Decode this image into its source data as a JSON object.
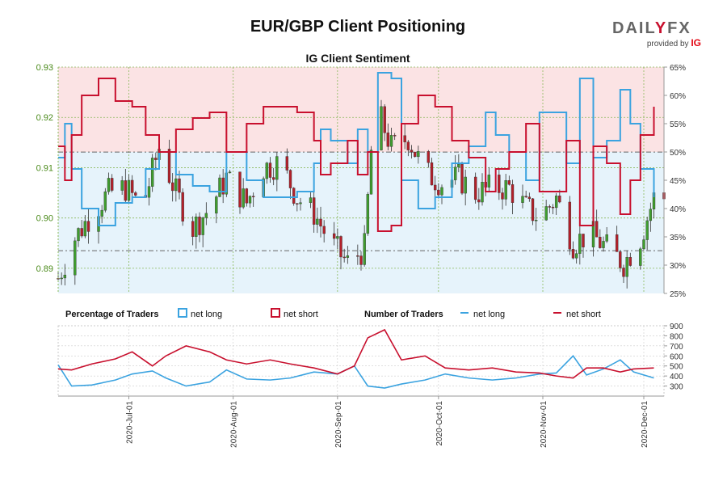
{
  "header": {
    "title": "EUR/GBP Client Positioning",
    "subtitle": "IG Client Sentiment",
    "brand_main_a": "DAIL",
    "brand_main_b": "Y",
    "brand_main_c": "FX",
    "brand_sub": "provided by",
    "brand_sub_ig": "IG"
  },
  "legend": {
    "pct_title": "Percentage of Traders",
    "pct_long": "net long",
    "pct_short": "net short",
    "num_title": "Number of Traders",
    "num_long": "net long",
    "num_short": "net short"
  },
  "colors": {
    "long": "#3ba3e0",
    "short": "#c8102e",
    "long_fill": "#e6f3fb",
    "short_fill": "#fbe3e4",
    "candle_up": "#3f9e2e",
    "candle_down": "#b3202a",
    "price_axis": "#4a8a1a",
    "grid": "#8ab85a"
  },
  "chart_data": [
    {
      "type": "line",
      "name": "price-and-percentage",
      "x_ticks": [
        "2020-Jul-01",
        "2020-Aug-01",
        "2020-Sep-01",
        "2020-Oct-01",
        "2020-Nov-01",
        "2020-Dec-01"
      ],
      "x_range": [
        "2020-06-10",
        "2020-12-07"
      ],
      "price_axis": {
        "ylim": [
          0.885,
          0.93
        ],
        "ticks": [
          0.89,
          0.9,
          0.91,
          0.92,
          0.93
        ]
      },
      "percent_axis": {
        "ylim": [
          25,
          65
        ],
        "ticks": [
          "25%",
          "30%",
          "35%",
          "40%",
          "45%",
          "50%",
          "55%",
          "60%",
          "65%"
        ]
      },
      "reference_levels": {
        "upper_price": 0.9131,
        "lower_price": 0.8935
      },
      "price_close": [
        [
          "2020-06-10",
          0.888
        ],
        [
          "2020-06-15",
          0.896
        ],
        [
          "2020-06-20",
          0.901
        ],
        [
          "2020-06-25",
          0.905
        ],
        [
          "2020-06-30",
          0.906
        ],
        [
          "2020-07-05",
          0.902
        ],
        [
          "2020-07-10",
          0.914
        ],
        [
          "2020-07-15",
          0.905
        ],
        [
          "2020-07-20",
          0.898
        ],
        [
          "2020-07-25",
          0.902
        ],
        [
          "2020-07-30",
          0.908
        ],
        [
          "2020-08-05",
          0.903
        ],
        [
          "2020-08-10",
          0.91
        ],
        [
          "2020-08-15",
          0.911
        ],
        [
          "2020-08-20",
          0.904
        ],
        [
          "2020-08-25",
          0.901
        ],
        [
          "2020-08-30",
          0.895
        ],
        [
          "2020-09-04",
          0.891
        ],
        [
          "2020-09-09",
          0.894
        ],
        [
          "2020-09-12",
          0.923
        ],
        [
          "2020-09-17",
          0.914
        ],
        [
          "2020-09-22",
          0.916
        ],
        [
          "2020-09-27",
          0.909
        ],
        [
          "2020-10-02",
          0.907
        ],
        [
          "2020-10-07",
          0.908
        ],
        [
          "2020-10-12",
          0.905
        ],
        [
          "2020-10-17",
          0.906
        ],
        [
          "2020-10-22",
          0.906
        ],
        [
          "2020-10-27",
          0.902
        ],
        [
          "2020-10-31",
          0.9
        ],
        [
          "2020-11-05",
          0.904
        ],
        [
          "2020-11-10",
          0.895
        ],
        [
          "2020-11-15",
          0.897
        ],
        [
          "2020-11-20",
          0.894
        ],
        [
          "2020-11-25",
          0.891
        ],
        [
          "2020-11-30",
          0.896
        ],
        [
          "2020-12-04",
          0.904
        ]
      ],
      "series": [
        {
          "name": "net long",
          "values": [
            [
              "2020-06-10",
              49
            ],
            [
              "2020-06-12",
              55
            ],
            [
              "2020-06-14",
              47
            ],
            [
              "2020-06-17",
              40
            ],
            [
              "2020-06-22",
              37
            ],
            [
              "2020-06-27",
              41
            ],
            [
              "2020-07-02",
              42
            ],
            [
              "2020-07-06",
              47
            ],
            [
              "2020-07-10",
              50
            ],
            [
              "2020-07-15",
              46
            ],
            [
              "2020-07-20",
              44
            ],
            [
              "2020-07-25",
              43
            ],
            [
              "2020-07-30",
              50
            ],
            [
              "2020-08-05",
              45
            ],
            [
              "2020-08-10",
              42
            ],
            [
              "2020-08-15",
              42
            ],
            [
              "2020-08-20",
              43
            ],
            [
              "2020-08-25",
              48
            ],
            [
              "2020-08-27",
              54
            ],
            [
              "2020-08-30",
              52
            ],
            [
              "2020-09-04",
              48
            ],
            [
              "2020-09-07",
              54
            ],
            [
              "2020-09-10",
              50
            ],
            [
              "2020-09-13",
              64
            ],
            [
              "2020-09-17",
              63
            ],
            [
              "2020-09-20",
              45
            ],
            [
              "2020-09-25",
              40
            ],
            [
              "2020-09-30",
              42
            ],
            [
              "2020-10-05",
              48
            ],
            [
              "2020-10-10",
              51
            ],
            [
              "2020-10-15",
              57
            ],
            [
              "2020-10-18",
              53
            ],
            [
              "2020-10-22",
              50
            ],
            [
              "2020-10-27",
              45
            ],
            [
              "2020-10-31",
              57
            ],
            [
              "2020-11-03",
              57
            ],
            [
              "2020-11-08",
              48
            ],
            [
              "2020-11-12",
              63
            ],
            [
              "2020-11-16",
              49
            ],
            [
              "2020-11-20",
              52
            ],
            [
              "2020-11-24",
              61
            ],
            [
              "2020-11-27",
              55
            ],
            [
              "2020-11-30",
              47
            ],
            [
              "2020-12-04",
              42
            ]
          ]
        },
        {
          "name": "net short",
          "values": [
            [
              "2020-06-10",
              51
            ],
            [
              "2020-06-12",
              45
            ],
            [
              "2020-06-14",
              53
            ],
            [
              "2020-06-17",
              60
            ],
            [
              "2020-06-22",
              63
            ],
            [
              "2020-06-27",
              59
            ],
            [
              "2020-07-02",
              58
            ],
            [
              "2020-07-06",
              53
            ],
            [
              "2020-07-10",
              50
            ],
            [
              "2020-07-15",
              54
            ],
            [
              "2020-07-20",
              56
            ],
            [
              "2020-07-25",
              57
            ],
            [
              "2020-07-30",
              50
            ],
            [
              "2020-08-05",
              55
            ],
            [
              "2020-08-10",
              58
            ],
            [
              "2020-08-15",
              58
            ],
            [
              "2020-08-20",
              57
            ],
            [
              "2020-08-25",
              52
            ],
            [
              "2020-08-27",
              46
            ],
            [
              "2020-08-30",
              48
            ],
            [
              "2020-09-04",
              52
            ],
            [
              "2020-09-07",
              46
            ],
            [
              "2020-09-10",
              50
            ],
            [
              "2020-09-13",
              36
            ],
            [
              "2020-09-17",
              37
            ],
            [
              "2020-09-20",
              55
            ],
            [
              "2020-09-25",
              60
            ],
            [
              "2020-09-30",
              58
            ],
            [
              "2020-10-05",
              52
            ],
            [
              "2020-10-10",
              49
            ],
            [
              "2020-10-15",
              43
            ],
            [
              "2020-10-18",
              47
            ],
            [
              "2020-10-22",
              50
            ],
            [
              "2020-10-27",
              55
            ],
            [
              "2020-10-31",
              43
            ],
            [
              "2020-11-03",
              43
            ],
            [
              "2020-11-08",
              52
            ],
            [
              "2020-11-12",
              37
            ],
            [
              "2020-11-16",
              51
            ],
            [
              "2020-11-20",
              48
            ],
            [
              "2020-11-24",
              39
            ],
            [
              "2020-11-27",
              45
            ],
            [
              "2020-11-30",
              53
            ],
            [
              "2020-12-04",
              58
            ]
          ]
        }
      ]
    },
    {
      "type": "line",
      "name": "number-of-traders",
      "ylim": [
        200,
        900
      ],
      "y_ticks": [
        300,
        400,
        500,
        600,
        700,
        800,
        900
      ],
      "series": [
        {
          "name": "net long",
          "values": [
            [
              "2020-06-10",
              510
            ],
            [
              "2020-06-14",
              300
            ],
            [
              "2020-06-20",
              310
            ],
            [
              "2020-06-27",
              360
            ],
            [
              "2020-07-02",
              420
            ],
            [
              "2020-07-08",
              450
            ],
            [
              "2020-07-12",
              380
            ],
            [
              "2020-07-18",
              300
            ],
            [
              "2020-07-25",
              340
            ],
            [
              "2020-07-30",
              460
            ],
            [
              "2020-08-05",
              370
            ],
            [
              "2020-08-12",
              360
            ],
            [
              "2020-08-18",
              380
            ],
            [
              "2020-08-25",
              440
            ],
            [
              "2020-09-01",
              420
            ],
            [
              "2020-09-06",
              500
            ],
            [
              "2020-09-10",
              300
            ],
            [
              "2020-09-15",
              280
            ],
            [
              "2020-09-20",
              320
            ],
            [
              "2020-09-27",
              360
            ],
            [
              "2020-10-03",
              420
            ],
            [
              "2020-10-10",
              380
            ],
            [
              "2020-10-17",
              360
            ],
            [
              "2020-10-24",
              380
            ],
            [
              "2020-10-31",
              420
            ],
            [
              "2020-11-05",
              430
            ],
            [
              "2020-11-10",
              600
            ],
            [
              "2020-11-14",
              410
            ],
            [
              "2020-11-19",
              470
            ],
            [
              "2020-11-24",
              560
            ],
            [
              "2020-11-28",
              440
            ],
            [
              "2020-12-04",
              380
            ]
          ]
        },
        {
          "name": "net short",
          "values": [
            [
              "2020-06-10",
              470
            ],
            [
              "2020-06-14",
              460
            ],
            [
              "2020-06-20",
              520
            ],
            [
              "2020-06-27",
              570
            ],
            [
              "2020-07-02",
              640
            ],
            [
              "2020-07-08",
              500
            ],
            [
              "2020-07-12",
              600
            ],
            [
              "2020-07-18",
              700
            ],
            [
              "2020-07-25",
              640
            ],
            [
              "2020-07-30",
              560
            ],
            [
              "2020-08-05",
              520
            ],
            [
              "2020-08-12",
              560
            ],
            [
              "2020-08-18",
              520
            ],
            [
              "2020-08-25",
              480
            ],
            [
              "2020-09-01",
              420
            ],
            [
              "2020-09-06",
              500
            ],
            [
              "2020-09-10",
              780
            ],
            [
              "2020-09-15",
              860
            ],
            [
              "2020-09-20",
              560
            ],
            [
              "2020-09-27",
              600
            ],
            [
              "2020-10-03",
              480
            ],
            [
              "2020-10-10",
              460
            ],
            [
              "2020-10-17",
              480
            ],
            [
              "2020-10-24",
              440
            ],
            [
              "2020-10-31",
              430
            ],
            [
              "2020-11-05",
              400
            ],
            [
              "2020-11-10",
              380
            ],
            [
              "2020-11-14",
              480
            ],
            [
              "2020-11-19",
              480
            ],
            [
              "2020-11-24",
              440
            ],
            [
              "2020-11-28",
              470
            ],
            [
              "2020-12-04",
              480
            ]
          ]
        }
      ]
    }
  ]
}
